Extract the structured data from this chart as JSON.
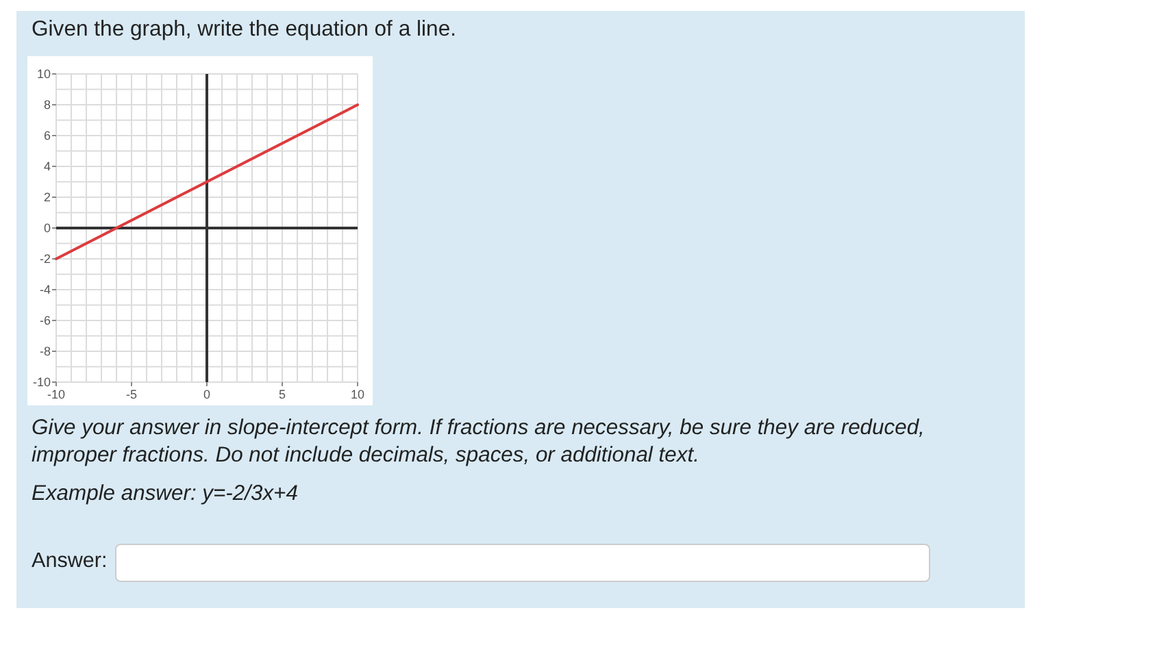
{
  "chart_data": {
    "type": "line",
    "title": "Given the graph, write the equation of a line.",
    "x": [
      -10,
      10
    ],
    "values": [
      -2,
      8
    ],
    "color": "#dd3b3e",
    "xlim": [
      -10,
      10
    ],
    "ylim": [
      -10,
      10
    ],
    "xticks": [
      -10,
      {
        "value": -9,
        "label": null
      },
      {
        "value": -8,
        "label": null
      },
      {
        "value": -7,
        "label": null
      },
      {
        "value": -6,
        "label": null
      },
      -5,
      {
        "value": -4,
        "label": null
      },
      {
        "value": -3,
        "label": null
      },
      {
        "value": -2,
        "label": null
      },
      {
        "value": -1,
        "label": null
      },
      0,
      {
        "value": 1,
        "label": null
      },
      {
        "value": 2,
        "label": null
      },
      {
        "value": 3,
        "label": null
      },
      {
        "value": 4,
        "label": null
      },
      5,
      {
        "value": 6,
        "label": null
      },
      {
        "value": 7,
        "label": null
      },
      {
        "value": 8,
        "label": null
      },
      {
        "value": 9,
        "label": null
      },
      10
    ],
    "yticks": [
      -10,
      {
        "value": -9,
        "label": null
      },
      -8,
      {
        "value": -7,
        "label": null
      },
      -6,
      {
        "value": -5,
        "label": null
      },
      -4,
      {
        "value": -3,
        "label": null
      },
      -2,
      {
        "value": -1,
        "label": null
      },
      0,
      {
        "value": 1,
        "label": null
      },
      2,
      {
        "value": 3,
        "label": null
      },
      4,
      {
        "value": 5,
        "label": null
      },
      6,
      {
        "value": 7,
        "label": null
      },
      8,
      {
        "value": 9,
        "label": null
      },
      10
    ],
    "grid": true,
    "annotations": [
      "Give your answer in slope-intercept form. If fractions are necessary, be sure they are reduced, improper fractions. Do not include decimals, spaces, or additional text.",
      "Example answer: y=-2/3x+4",
      "Answer:"
    ]
  }
}
